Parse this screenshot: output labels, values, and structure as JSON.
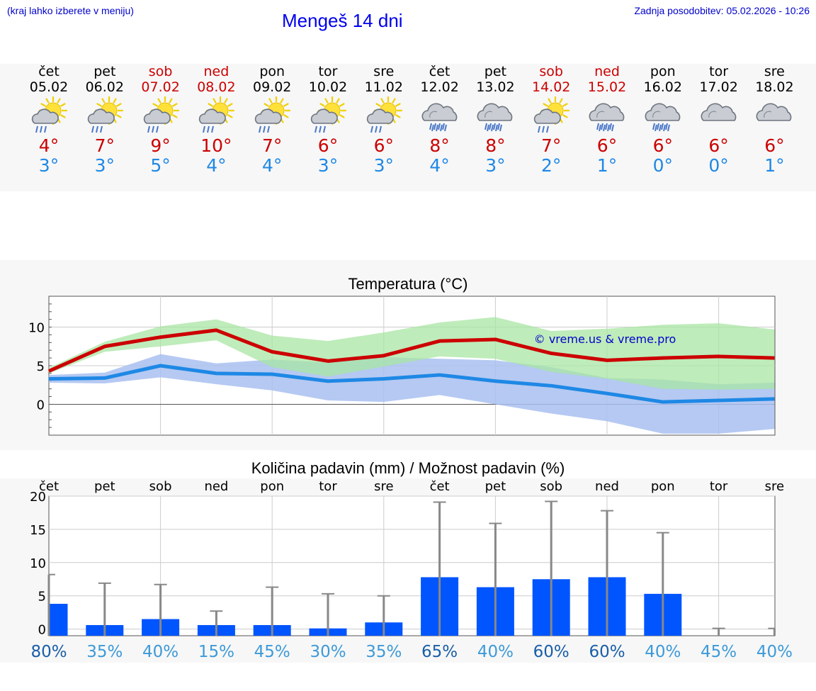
{
  "header": {
    "hint": "(kraj lahko izberete v meniju)",
    "title": "Mengeš 14 dni",
    "updated": "Zadnja posodobitev: 05.02.2026 - 10:26"
  },
  "colors": {
    "max_temp": "#cc0000",
    "min_temp": "#1e88e5",
    "max_band": "#a8e6a3",
    "min_band": "#a8c0f0",
    "precip_bar": "#0055ff",
    "whisker": "#888888",
    "watermark": "#0000cc"
  },
  "days": [
    {
      "name": "čet",
      "date": "05.02",
      "weekend": false,
      "icon": "sun-cloud-drizzle-icon",
      "tmax": "4°",
      "tmin": "3°"
    },
    {
      "name": "pet",
      "date": "06.02",
      "weekend": false,
      "icon": "sun-cloud-drizzle-icon",
      "tmax": "7°",
      "tmin": "3°"
    },
    {
      "name": "sob",
      "date": "07.02",
      "weekend": true,
      "icon": "sun-cloud-drizzle-icon",
      "tmax": "9°",
      "tmin": "5°"
    },
    {
      "name": "ned",
      "date": "08.02",
      "weekend": true,
      "icon": "sun-cloud-rain-icon",
      "tmax": "10°",
      "tmin": "4°"
    },
    {
      "name": "pon",
      "date": "09.02",
      "weekend": false,
      "icon": "sun-cloud-drizzle-icon",
      "tmax": "7°",
      "tmin": "4°"
    },
    {
      "name": "tor",
      "date": "10.02",
      "weekend": false,
      "icon": "sun-cloud-drizzle-icon",
      "tmax": "6°",
      "tmin": "3°"
    },
    {
      "name": "sre",
      "date": "11.02",
      "weekend": false,
      "icon": "sun-cloud-drizzle-icon",
      "tmax": "6°",
      "tmin": "3°"
    },
    {
      "name": "čet",
      "date": "12.02",
      "weekend": false,
      "icon": "cloud-rain-icon",
      "tmax": "8°",
      "tmin": "4°"
    },
    {
      "name": "pet",
      "date": "13.02",
      "weekend": false,
      "icon": "cloud-rain-icon",
      "tmax": "8°",
      "tmin": "3°"
    },
    {
      "name": "sob",
      "date": "14.02",
      "weekend": true,
      "icon": "sun-cloud-rain-icon",
      "tmax": "7°",
      "tmin": "2°"
    },
    {
      "name": "ned",
      "date": "15.02",
      "weekend": true,
      "icon": "cloud-rain-icon",
      "tmax": "6°",
      "tmin": "1°"
    },
    {
      "name": "pon",
      "date": "16.02",
      "weekend": false,
      "icon": "cloud-rain-icon",
      "tmax": "6°",
      "tmin": "0°"
    },
    {
      "name": "tor",
      "date": "17.02",
      "weekend": false,
      "icon": "cloud-icon",
      "tmax": "6°",
      "tmin": "0°"
    },
    {
      "name": "sre",
      "date": "18.02",
      "weekend": false,
      "icon": "cloud-icon",
      "tmax": "6°",
      "tmin": "1°"
    }
  ],
  "chart_data": [
    {
      "type": "line",
      "title": "Temperatura (°C)",
      "watermark": "© vreme.us & vreme.pro",
      "x": [
        0,
        1,
        2,
        3,
        4,
        5,
        6,
        7,
        8,
        9,
        10,
        11,
        12,
        13
      ],
      "ylim": [
        -4,
        14
      ],
      "yticks": [
        0,
        5,
        10
      ],
      "series": [
        {
          "name": "max",
          "values": [
            4.3,
            7.5,
            8.7,
            9.6,
            6.8,
            5.6,
            6.3,
            8.2,
            8.4,
            6.6,
            5.7,
            6.0,
            6.2,
            6.0
          ]
        },
        {
          "name": "min",
          "values": [
            3.3,
            3.4,
            5.0,
            4.0,
            3.9,
            3.0,
            3.3,
            3.8,
            3.0,
            2.4,
            1.4,
            0.3,
            0.5,
            0.7
          ]
        }
      ],
      "bands": [
        {
          "name": "max_range",
          "low": [
            4.0,
            6.8,
            7.5,
            8.3,
            4.8,
            3.6,
            4.9,
            6.2,
            5.9,
            4.2,
            3.3,
            2.0,
            1.9,
            2.0
          ],
          "high": [
            4.7,
            8.1,
            10.1,
            11.0,
            8.9,
            8.2,
            9.3,
            10.6,
            11.3,
            9.5,
            9.8,
            10.3,
            10.5,
            9.7
          ]
        },
        {
          "name": "min_range",
          "low": [
            2.8,
            2.7,
            3.5,
            2.6,
            1.8,
            0.5,
            0.3,
            1.2,
            0.0,
            -1.2,
            -2.2,
            -3.8,
            -3.8,
            -3.2
          ],
          "high": [
            3.8,
            4.1,
            6.5,
            5.3,
            5.8,
            5.4,
            6.1,
            5.9,
            5.7,
            4.8,
            3.4,
            3.2,
            2.6,
            2.8
          ]
        }
      ],
      "grid": true
    },
    {
      "type": "bar",
      "title": "Količina padavin (mm) / Možnost padavin (%)",
      "categories": [
        "čet",
        "pet",
        "sob",
        "ned",
        "pon",
        "tor",
        "sre",
        "čet",
        "pet",
        "sob",
        "ned",
        "pon",
        "tor",
        "sre"
      ],
      "values": [
        3.8,
        0.6,
        1.5,
        0.6,
        0.6,
        0.1,
        1.0,
        7.8,
        6.3,
        7.5,
        7.8,
        5.3,
        0.0,
        0.0
      ],
      "whisker_high": [
        8.2,
        6.9,
        6.7,
        2.7,
        6.3,
        5.3,
        5.0,
        19.1,
        15.9,
        19.2,
        17.8,
        14.5,
        0.1,
        0.1
      ],
      "chance": [
        "80%",
        "35%",
        "40%",
        "15%",
        "45%",
        "30%",
        "35%",
        "65%",
        "40%",
        "60%",
        "60%",
        "40%",
        "45%",
        "40%"
      ],
      "chance_values": [
        80,
        35,
        40,
        15,
        45,
        30,
        35,
        65,
        40,
        60,
        60,
        40,
        45,
        40
      ],
      "ylim": [
        -1,
        20
      ],
      "yticks": [
        0,
        5,
        10,
        15,
        20
      ],
      "grid": true
    }
  ]
}
